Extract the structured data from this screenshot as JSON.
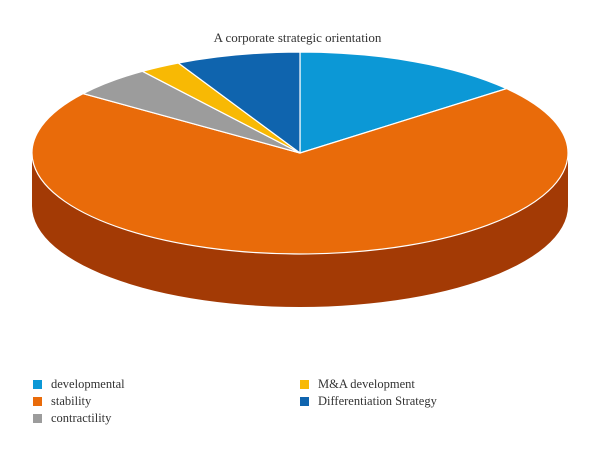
{
  "chart_data": {
    "type": "pie",
    "title": "A corporate strategic orientation",
    "categories": [
      "developmental",
      "stability",
      "contractility",
      "M&A development",
      "Differentiation Strategy"
    ],
    "values": [
      14,
      71,
      5,
      2.5,
      7.5
    ],
    "colors": [
      "#0c98d6",
      "#e96b0a",
      "#9c9c9c",
      "#f8b904",
      "#0f64ae"
    ],
    "side_colors": [
      "#0a6f9c",
      "#a33a05",
      "#6c6c6c",
      "#b98900",
      "#0a4a80"
    ],
    "legend_position": "bottom",
    "three_d": true
  }
}
